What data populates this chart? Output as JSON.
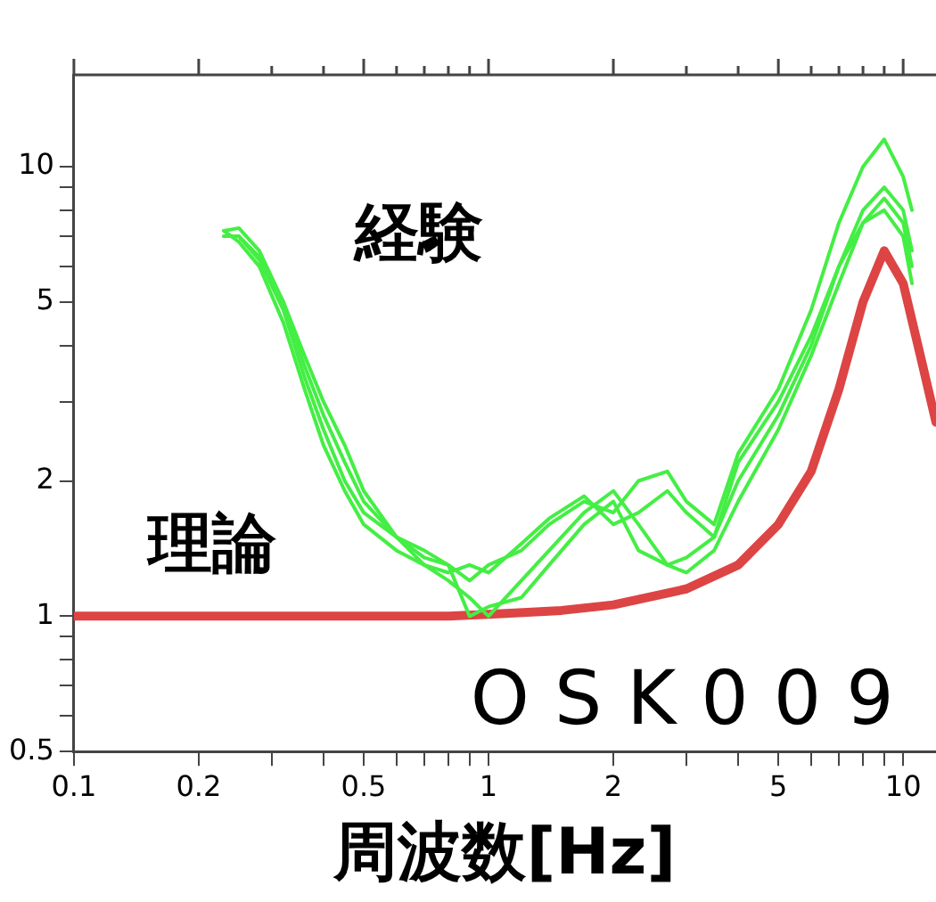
{
  "chart_data": {
    "type": "line",
    "xlabel": "周波数[Hz]",
    "log": "xy",
    "grid": false,
    "legend": false,
    "marker": "none",
    "line_style": "solid",
    "xlim": [
      0.1,
      12
    ],
    "ylim": [
      0.5,
      16
    ],
    "xticks": [
      0.1,
      0.2,
      {
        "value": 0.3,
        "label": null
      },
      {
        "value": 0.4,
        "label": null
      },
      0.5,
      {
        "value": 0.6,
        "label": null
      },
      {
        "value": 0.7,
        "label": null
      },
      {
        "value": 0.8,
        "label": null
      },
      {
        "value": 0.9,
        "label": null
      },
      1,
      2,
      {
        "value": 3,
        "label": null
      },
      {
        "value": 4,
        "label": null
      },
      5,
      {
        "value": 6,
        "label": null
      },
      {
        "value": 7,
        "label": null
      },
      {
        "value": 8,
        "label": null
      },
      {
        "value": 9,
        "label": null
      },
      10
    ],
    "yticks": [
      0.5,
      {
        "value": 0.6,
        "label": null
      },
      {
        "value": 0.7,
        "label": null
      },
      {
        "value": 0.8,
        "label": null
      },
      {
        "value": 0.9,
        "label": null
      },
      1,
      2,
      {
        "value": 3,
        "label": null
      },
      {
        "value": 4,
        "label": null
      },
      5,
      {
        "value": 6,
        "label": null
      },
      {
        "value": 7,
        "label": null
      },
      {
        "value": 8,
        "label": null
      },
      {
        "value": 9,
        "label": null
      },
      10
    ],
    "x": [
      0.23,
      0.25,
      0.28,
      0.32,
      0.36,
      0.4,
      0.45,
      0.5,
      0.6,
      0.7,
      0.8,
      0.9,
      1.0,
      1.2,
      1.4,
      1.7,
      2.0,
      2.3,
      2.7,
      3.0,
      3.5,
      4.0,
      5,
      6,
      7,
      8,
      9,
      10,
      10.5
    ],
    "series": [
      {
        "color": "#44ee44",
        "values": [
          7.2,
          7.3,
          6.5,
          5,
          3.6,
          2.8,
          2.2,
          1.8,
          1.5,
          1.4,
          1.3,
          1.2,
          1.3,
          1.4,
          1.6,
          1.8,
          1.7,
          2.0,
          2.1,
          1.8,
          1.6,
          2.3,
          3.2,
          4.8,
          7.5,
          10,
          11.5,
          9.5,
          8
        ]
      },
      {
        "color": "#44ee44",
        "values": [
          7,
          7,
          6.2,
          4.8,
          3.4,
          2.6,
          2.0,
          1.7,
          1.5,
          1.3,
          1.25,
          1.3,
          1.25,
          1.45,
          1.65,
          1.85,
          1.6,
          1.7,
          1.9,
          1.7,
          1.5,
          2.2,
          3.0,
          4.2,
          6,
          8,
          9,
          8,
          6.5
        ]
      },
      {
        "color": "#44ee44",
        "values": [
          7.2,
          6.8,
          6,
          4.5,
          3.2,
          2.4,
          1.9,
          1.6,
          1.4,
          1.3,
          1.2,
          1.1,
          1.0,
          1.2,
          1.4,
          1.7,
          1.9,
          1.6,
          1.3,
          1.25,
          1.4,
          1.8,
          2.6,
          3.8,
          5.5,
          7.5,
          8.5,
          7.5,
          6
        ]
      },
      {
        "color": "#44ee44",
        "values": [
          7,
          7,
          6.3,
          5,
          3.8,
          3,
          2.4,
          1.9,
          1.5,
          1.35,
          1.3,
          1.0,
          1.05,
          1.1,
          1.3,
          1.6,
          1.8,
          1.4,
          1.3,
          1.35,
          1.5,
          2.0,
          2.8,
          4,
          6,
          7.5,
          8,
          7,
          5.5
        ]
      },
      {
        "color": "#dd4444",
        "x": [
          0.1,
          0.3,
          0.5,
          0.8,
          1,
          1.5,
          2,
          3,
          4,
          5,
          6,
          7,
          8,
          9,
          10,
          11,
          12
        ],
        "values": [
          1,
          1,
          1,
          1,
          1.01,
          1.03,
          1.06,
          1.15,
          1.3,
          1.6,
          2.1,
          3.2,
          5,
          6.5,
          5.5,
          3.8,
          2.7
        ]
      }
    ],
    "annotations": [
      "経験",
      "理論",
      "OSK009"
    ]
  }
}
